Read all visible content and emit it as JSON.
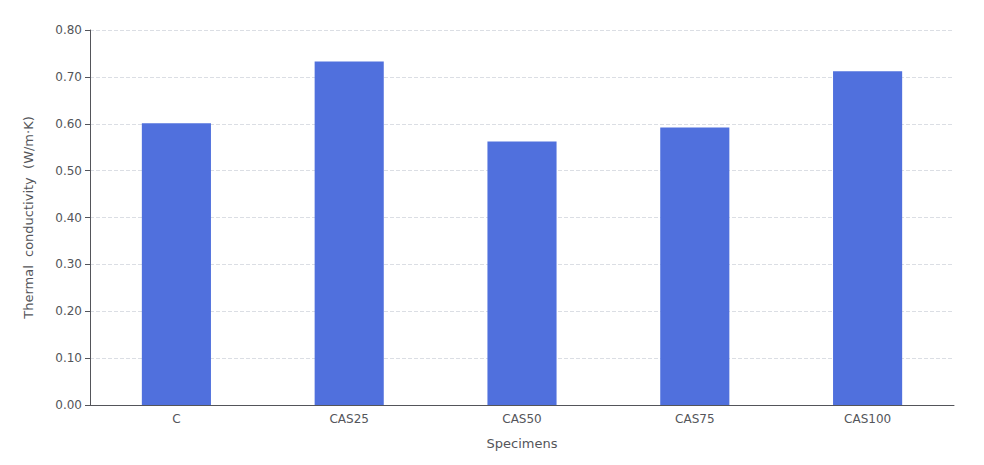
{
  "chart_data": {
    "type": "bar",
    "categories": [
      "C",
      "CAS25",
      "CAS50",
      "CAS75",
      "CAS100"
    ],
    "values": [
      0.601,
      0.733,
      0.562,
      0.592,
      0.712
    ],
    "xlabel": "Specimens",
    "ylabel": "Thermal  conductivity  (W/m·K)",
    "ylim": [
      0.0,
      0.8
    ],
    "yticks": [
      {
        "value": 0.0,
        "label": "0.00"
      },
      {
        "value": 0.1,
        "label": "0.10"
      },
      {
        "value": 0.2,
        "label": "0.20"
      },
      {
        "value": 0.3,
        "label": "0.30"
      },
      {
        "value": 0.4,
        "label": "0.40"
      },
      {
        "value": 0.5,
        "label": "0.50"
      },
      {
        "value": 0.6,
        "label": "0.60"
      },
      {
        "value": 0.7,
        "label": "0.70"
      },
      {
        "value": 0.8,
        "label": "0.80"
      }
    ],
    "grid": true
  }
}
